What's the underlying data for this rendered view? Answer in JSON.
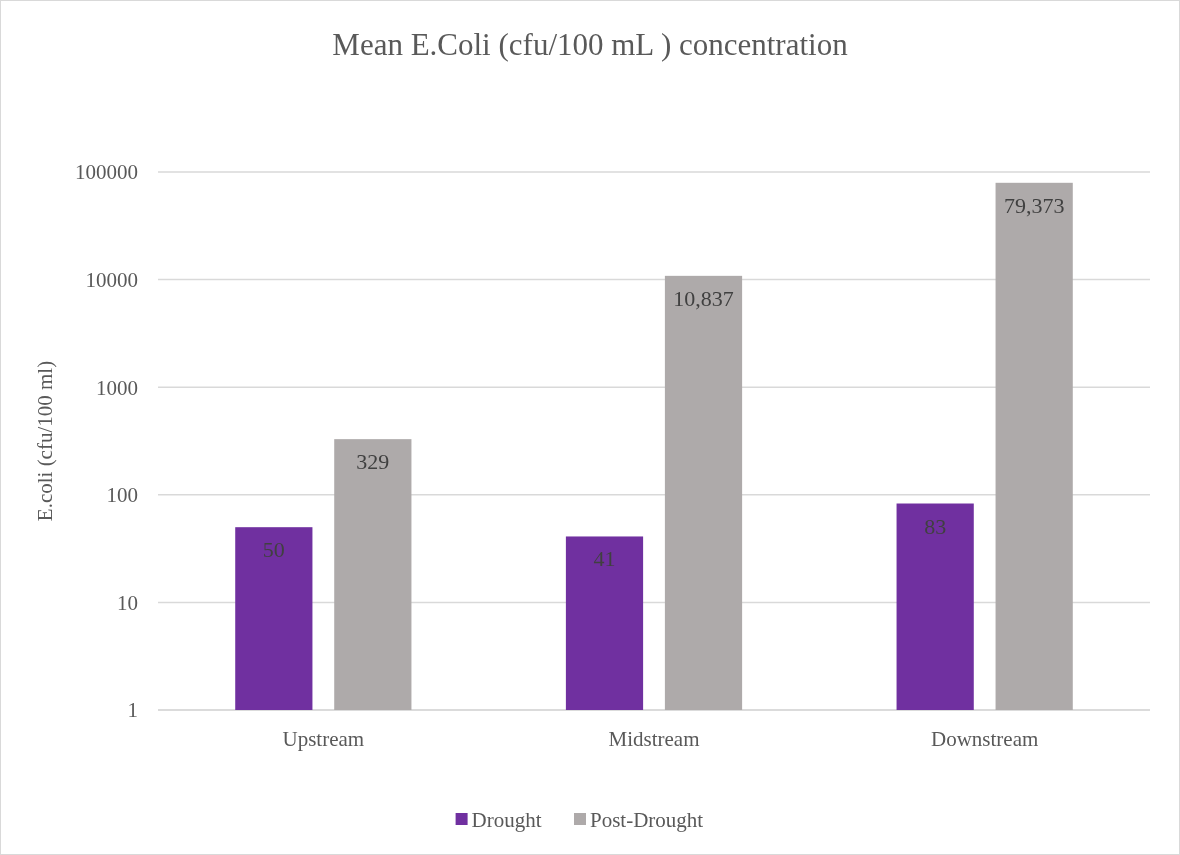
{
  "chart_data": {
    "type": "bar",
    "title": "Mean E.Coli (cfu/100 mL ) concentration",
    "ylabel": "E.coli (cfu/100 ml)",
    "categories": [
      "Upstream",
      "Midstream",
      "Downstream"
    ],
    "series": [
      {
        "name": "Drought",
        "color": "#7030a0",
        "values": [
          50,
          41,
          83
        ],
        "value_labels": [
          "50",
          "41",
          "83"
        ]
      },
      {
        "name": "Post-Drought",
        "color": "#aeaaaa",
        "values": [
          329,
          10837,
          79373
        ],
        "value_labels": [
          "329",
          "10,837",
          "79,373"
        ]
      }
    ],
    "log": true,
    "ylim": [
      1,
      100000
    ],
    "yticks": [
      1,
      10,
      100,
      1000,
      10000,
      100000
    ],
    "grid": "y",
    "legend": "bottom"
  }
}
